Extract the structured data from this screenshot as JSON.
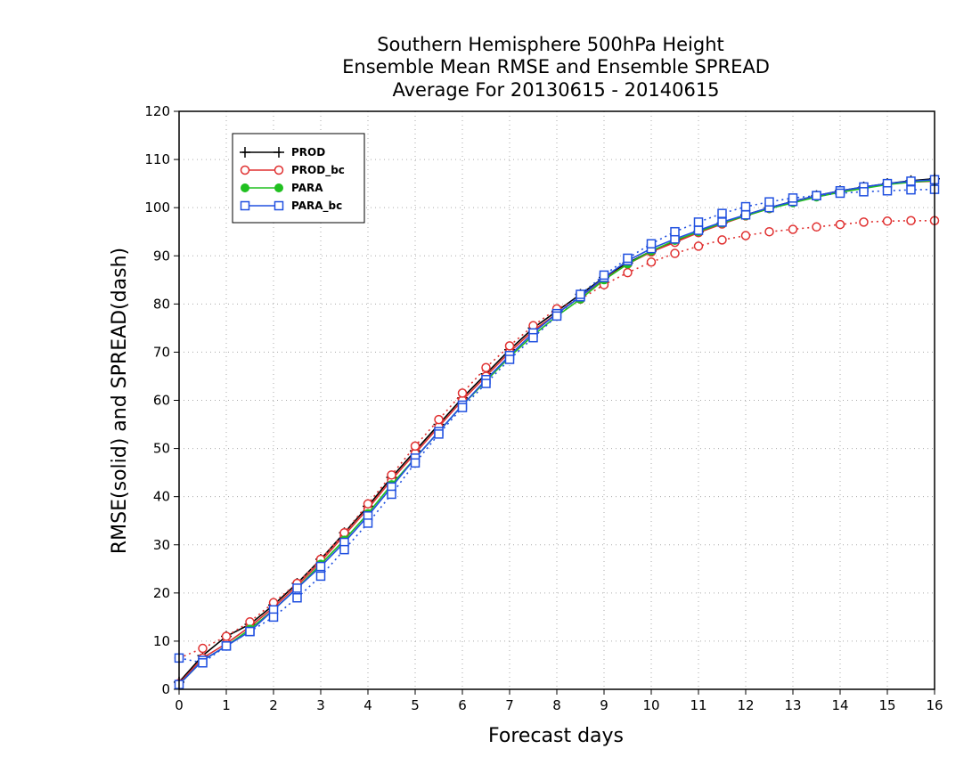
{
  "chart_data": {
    "type": "line",
    "title_lines": [
      "Southern Hemisphere 500hPa Height",
      "Ensemble Mean RMSE and Ensemble SPREAD",
      "Average For 20130615 - 20140615"
    ],
    "xlabel": "Forecast days",
    "ylabel": "RMSE(solid) and SPREAD(dash)",
    "xlim": [
      0,
      16
    ],
    "ylim": [
      0,
      120
    ],
    "x_ticks": [
      0,
      1,
      2,
      3,
      4,
      5,
      6,
      7,
      8,
      9,
      10,
      11,
      12,
      13,
      14,
      15,
      16
    ],
    "y_ticks": [
      0,
      10,
      20,
      30,
      40,
      50,
      60,
      70,
      80,
      90,
      100,
      110,
      120
    ],
    "grid": true,
    "legend_position": "top-left",
    "x": [
      0,
      0.5,
      1,
      1.5,
      2,
      2.5,
      3,
      3.5,
      4,
      4.5,
      5,
      5.5,
      6,
      6.5,
      7,
      7.5,
      8,
      8.5,
      9,
      9.5,
      10,
      10.5,
      11,
      11.5,
      12,
      12.5,
      13,
      13.5,
      14,
      14.5,
      15,
      15.5,
      16
    ],
    "series": [
      {
        "name": "PROD",
        "color": "#000000",
        "marker": "plus",
        "line": "solid",
        "values": [
          1.5,
          7.0,
          11.0,
          13.5,
          17.5,
          22.0,
          27.0,
          32.5,
          38.0,
          44.0,
          49.5,
          55.0,
          60.5,
          65.5,
          70.5,
          75.0,
          78.5,
          82.0,
          85.5,
          88.5,
          91.0,
          93.0,
          95.0,
          96.8,
          98.5,
          100.0,
          101.3,
          102.5,
          103.5,
          104.3,
          105.0,
          105.6,
          106.0
        ]
      },
      {
        "name": "PROD_bc",
        "color": "#e03030",
        "marker": "circle",
        "line": "solid",
        "values": [
          1.2,
          6.5,
          9.5,
          13.0,
          17.0,
          21.5,
          26.5,
          32.0,
          37.5,
          43.5,
          49.0,
          54.5,
          60.0,
          65.0,
          70.0,
          74.5,
          78.0,
          81.5,
          85.2,
          88.3,
          90.8,
          92.8,
          94.8,
          96.6,
          98.3,
          99.8,
          101.2,
          102.4,
          103.4,
          104.2,
          104.9,
          105.3,
          105.5
        ]
      },
      {
        "name": "PROD_bc",
        "color": "#e03030",
        "marker": "circle",
        "line": "dashed",
        "values": [
          6.5,
          8.5,
          11.0,
          14.0,
          18.0,
          22.0,
          27.0,
          32.5,
          38.5,
          44.5,
          50.5,
          56.0,
          61.5,
          66.8,
          71.3,
          75.5,
          79.0,
          81.0,
          84.0,
          86.5,
          88.7,
          90.5,
          92.0,
          93.3,
          94.2,
          95.0,
          95.5,
          96.0,
          96.5,
          97.0,
          97.2,
          97.3,
          97.3
        ]
      },
      {
        "name": "PARA",
        "color": "#20c020",
        "marker": "filled-circle",
        "line": "solid",
        "values": [
          1.0,
          6.0,
          9.0,
          12.5,
          16.5,
          21.0,
          26.0,
          31.0,
          36.5,
          42.5,
          48.0,
          53.5,
          59.0,
          64.0,
          69.0,
          73.5,
          77.5,
          81.0,
          85.0,
          88.3,
          91.0,
          93.2,
          95.0,
          96.8,
          98.3,
          99.8,
          101.0,
          102.2,
          103.2,
          104.0,
          104.8,
          105.3,
          105.6
        ]
      },
      {
        "name": "PARA_bc",
        "color": "#2050e0",
        "marker": "square",
        "line": "solid",
        "values": [
          1.0,
          6.0,
          9.0,
          12.0,
          16.5,
          21.0,
          25.5,
          30.5,
          36.0,
          42.0,
          48.0,
          53.5,
          59.0,
          64.3,
          69.3,
          74.0,
          78.0,
          81.5,
          85.5,
          89.0,
          91.5,
          93.5,
          95.3,
          97.0,
          98.5,
          100.0,
          101.3,
          102.5,
          103.5,
          104.3,
          105.0,
          105.5,
          105.8
        ]
      },
      {
        "name": "PARA_bc",
        "color": "#2050e0",
        "marker": "square",
        "line": "dashed",
        "values": [
          6.5,
          5.5,
          9.0,
          12.0,
          15.0,
          19.0,
          23.5,
          29.0,
          34.5,
          40.5,
          47.0,
          53.0,
          58.5,
          63.5,
          68.5,
          73.0,
          77.5,
          82.0,
          86.0,
          89.5,
          92.5,
          95.0,
          97.0,
          98.8,
          100.2,
          101.2,
          102.0,
          102.5,
          103.0,
          103.3,
          103.5,
          103.7,
          103.8
        ]
      }
    ],
    "legend": [
      {
        "label": "PROD",
        "color": "#000000",
        "marker": "plus"
      },
      {
        "label": "PROD_bc",
        "color": "#e03030",
        "marker": "circle"
      },
      {
        "label": "PARA",
        "color": "#20c020",
        "marker": "filled-circle"
      },
      {
        "label": "PARA_bc",
        "color": "#2050e0",
        "marker": "square"
      }
    ]
  }
}
